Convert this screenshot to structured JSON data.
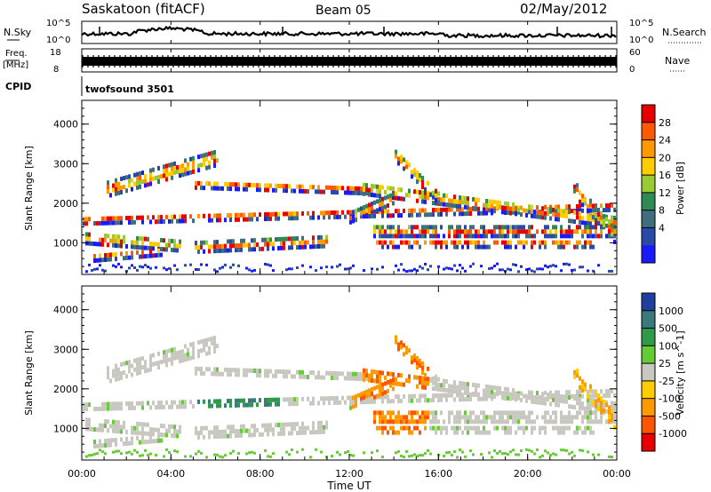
{
  "header": {
    "title": "Saskatoon (fitACF)",
    "beam": "Beam 05",
    "date": "02/May/2012"
  },
  "noise_panel": {
    "left_label": "N.Sky",
    "right_label": "N.Search",
    "left_ticks": [
      "10^5",
      "10^0"
    ],
    "right_ticks": [
      "10^5",
      "10^0"
    ]
  },
  "freq_panel": {
    "left_label_1": "Freq.",
    "left_label_2": "[MHz]",
    "left_ticks": [
      "18",
      "8"
    ],
    "right_label": "Nave",
    "right_ticks": [
      "60",
      "0"
    ]
  },
  "cpid": {
    "label": "CPID",
    "value": "twofsound 3501"
  },
  "chart_data": [
    {
      "type": "heatmap",
      "name": "power",
      "ylabel": "Slant Range [km]",
      "yticks": [
        1000,
        2000,
        3000,
        4000
      ],
      "ylim": [
        200,
        4600
      ],
      "colorbar": {
        "label": "Power [dB]",
        "ticks": [
          "28",
          "24",
          "20",
          "16",
          "12",
          "8",
          "4"
        ],
        "colors": [
          "#e60000",
          "#ff5a00",
          "#ff9900",
          "#ffcc00",
          "#99cc33",
          "#2e8b57",
          "#3f6f7f",
          "#2a4aa8",
          "#1a1aff"
        ]
      }
    },
    {
      "type": "heatmap",
      "name": "velocity",
      "ylabel": "Slant Range [km]",
      "yticks": [
        1000,
        2000,
        3000,
        4000
      ],
      "ylim": [
        200,
        4600
      ],
      "colorbar": {
        "label": "Velocity [m s^-1]",
        "ticks": [
          "1000",
          "500",
          "100",
          "25",
          "-25",
          "-100",
          "-500",
          "-1000"
        ],
        "colors": [
          "#1f3fa0",
          "#3a7a7a",
          "#2f9a4a",
          "#66cc33",
          "#c8c8c0",
          "#ffcc00",
          "#ff9900",
          "#ff5500",
          "#e60000"
        ]
      }
    }
  ],
  "xaxis": {
    "label": "Time UT",
    "ticks": [
      "00:00",
      "04:00",
      "08:00",
      "12:00",
      "16:00",
      "20:00",
      "00:00"
    ]
  }
}
